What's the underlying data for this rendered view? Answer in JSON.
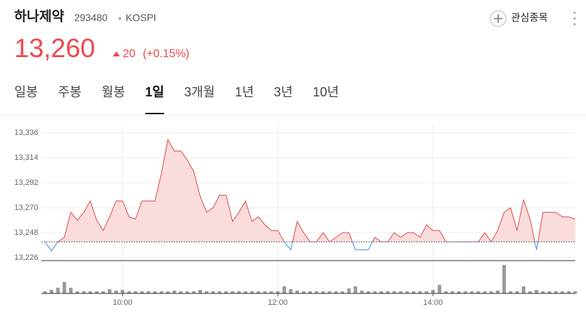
{
  "header": {
    "name": "하나제약",
    "code": "293480",
    "market": "KOSPI",
    "watch": "관심종목",
    "price": "13,260",
    "change": "20",
    "change_pct": "(+0.15%)"
  },
  "tabs": {
    "items": [
      "일봉",
      "주봉",
      "월봉",
      "1일",
      "3개월",
      "1년",
      "3년",
      "10년"
    ],
    "active": 3
  },
  "chart_data": {
    "type": "line",
    "up_color": "#e0474c",
    "down_color": "#3d8fe6",
    "fill": "#fbdcdc",
    "baseline": 13240,
    "grid": true,
    "x": [
      "09:00",
      "09:05",
      "09:10",
      "09:15",
      "09:20",
      "09:25",
      "09:30",
      "09:35",
      "09:40",
      "09:45",
      "09:50",
      "09:55",
      "10:00",
      "10:05",
      "10:10",
      "10:15",
      "10:20",
      "10:25",
      "10:30",
      "10:35",
      "10:40",
      "10:45",
      "10:50",
      "10:55",
      "11:00",
      "11:05",
      "11:10",
      "11:15",
      "11:20",
      "11:25",
      "11:30",
      "11:35",
      "11:40",
      "11:45",
      "11:50",
      "11:55",
      "12:00",
      "12:05",
      "12:10",
      "12:15",
      "12:20",
      "12:25",
      "12:30",
      "12:35",
      "12:40",
      "12:45",
      "12:50",
      "12:55",
      "13:00",
      "13:05",
      "13:10",
      "13:15",
      "13:20",
      "13:25",
      "13:30",
      "13:35",
      "13:40",
      "13:45",
      "13:50",
      "13:55",
      "14:00",
      "14:05",
      "14:10",
      "14:15",
      "14:20",
      "14:25",
      "14:30",
      "14:35",
      "14:40",
      "14:45",
      "14:50",
      "14:55",
      "15:00",
      "15:05",
      "15:10",
      "15:15",
      "15:20",
      "15:25",
      "15:30",
      "15:35",
      "15:40",
      "15:45",
      "15:50"
    ],
    "values": [
      13240,
      13232,
      13240,
      13244,
      13266,
      13259,
      13266,
      13276,
      13259,
      13250,
      13262,
      13276,
      13276,
      13262,
      13260,
      13276,
      13276,
      13276,
      13300,
      13330,
      13320,
      13320,
      13312,
      13302,
      13280,
      13266,
      13270,
      13281,
      13281,
      13258,
      13266,
      13276,
      13258,
      13262,
      13255,
      13250,
      13250,
      13240,
      13233,
      13258,
      13248,
      13240,
      13240,
      13248,
      13240,
      13244,
      13248,
      13248,
      13233,
      13233,
      13233,
      13244,
      13240,
      13240,
      13248,
      13244,
      13248,
      13248,
      13244,
      13255,
      13250,
      13250,
      13240,
      13240,
      13240,
      13240,
      13240,
      13240,
      13248,
      13240,
      13250,
      13266,
      13270,
      13250,
      13277,
      13260,
      13233,
      13266,
      13266,
      13266,
      13262,
      13262,
      13260
    ],
    "volumes": [
      3,
      5,
      8,
      16,
      8,
      3,
      3,
      3,
      3,
      3,
      6,
      4,
      5,
      3,
      3,
      3,
      3,
      3,
      3,
      3,
      4,
      3,
      3,
      3,
      5,
      3,
      3,
      3,
      3,
      3,
      3,
      3,
      3,
      3,
      3,
      3,
      3,
      10,
      6,
      4,
      3,
      3,
      3,
      3,
      3,
      3,
      3,
      7,
      10,
      4,
      3,
      3,
      3,
      3,
      3,
      3,
      3,
      3,
      3,
      3,
      5,
      12,
      3,
      3,
      3,
      3,
      3,
      3,
      3,
      3,
      4,
      40,
      3,
      3,
      10,
      3,
      5,
      3,
      3,
      3,
      3,
      3,
      3
    ],
    "volume_color": "#9a9a9a",
    "vlim": [
      0,
      40
    ],
    "xlim": [
      "09:00",
      "15:50"
    ],
    "xticks": [
      "10:00",
      "12:00",
      "14:00"
    ],
    "ylim": [
      13226,
      13336
    ],
    "yticks": [
      {
        "value": 13226,
        "label": "13,226"
      },
      {
        "value": 13248,
        "label": "13,248"
      },
      {
        "value": 13270,
        "label": "13,270"
      },
      {
        "value": 13292,
        "label": "13,292"
      },
      {
        "value": 13314,
        "label": "13,314"
      },
      {
        "value": 13336,
        "label": "13,336"
      }
    ]
  }
}
